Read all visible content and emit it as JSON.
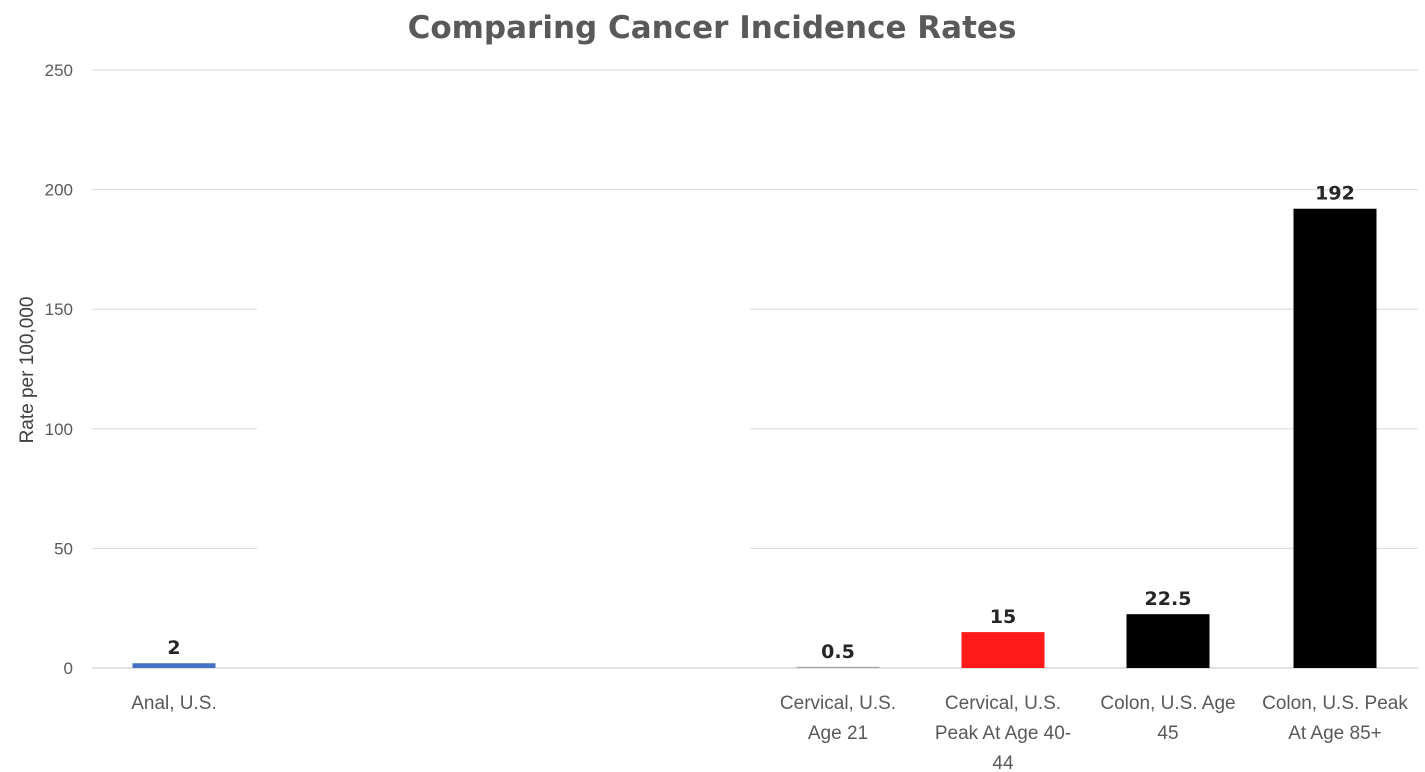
{
  "chart_data": {
    "type": "bar",
    "title": "Comparing Cancer Incidence Rates",
    "ylabel": "Rate per 100,000",
    "xlabel": "",
    "ylim": [
      0,
      250
    ],
    "yticks": [
      0,
      50,
      100,
      150,
      200,
      250
    ],
    "grid": true,
    "legend": "none",
    "categories": [
      [
        "Anal, U.S."
      ],
      [
        "Cervical, U.S.",
        "Age 21"
      ],
      [
        "Cervical, U.S.",
        "Peak At Age 40-",
        "44"
      ],
      [
        "Colon, U.S. Age",
        "45"
      ],
      [
        "Colon, U.S. Peak",
        "At Age 85+"
      ]
    ],
    "values": [
      2,
      0.5,
      15,
      22.5,
      192
    ],
    "data_labels": [
      "2",
      "0.5",
      "15",
      "22.5",
      "192"
    ],
    "colors": [
      "#4472c4",
      "#a6a6a6",
      "#ff1a1a",
      "#000000",
      "#000000"
    ]
  }
}
